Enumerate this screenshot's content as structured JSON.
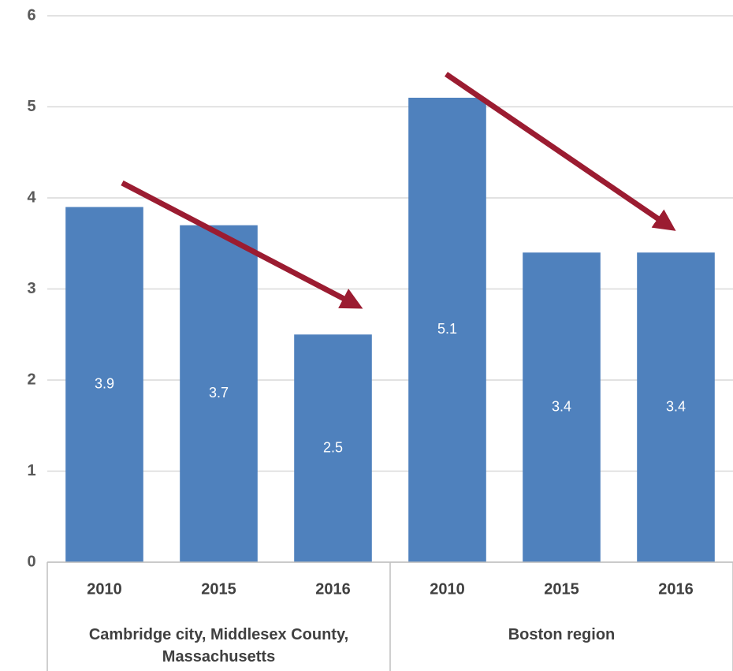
{
  "chart_data": {
    "type": "bar",
    "color": "#4f81bd",
    "groups": [
      {
        "label": "Cambridge city, Middlesex County, Massachusetts",
        "categories": [
          "2010",
          "2015",
          "2016"
        ],
        "values": [
          3.9,
          3.7,
          2.5
        ]
      },
      {
        "label": "Boston region",
        "categories": [
          "2010",
          "2015",
          "2016"
        ],
        "values": [
          5.1,
          3.4,
          3.4
        ]
      }
    ],
    "ylim": [
      0,
      6
    ],
    "yticks": [
      0,
      1,
      2,
      3,
      4,
      5,
      6
    ],
    "grid": true
  }
}
